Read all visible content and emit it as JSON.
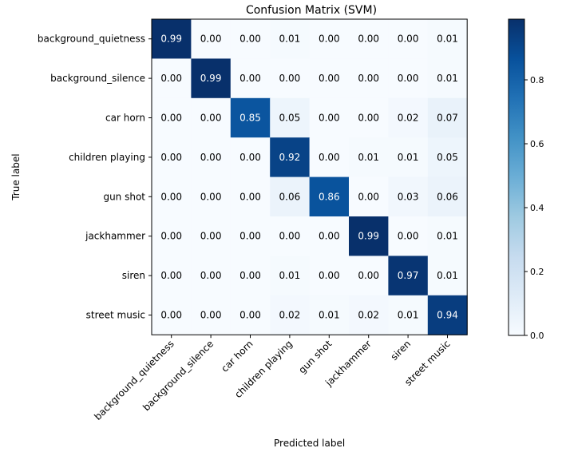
{
  "chart_data": {
    "type": "heatmap",
    "title": "Confusion Matrix  (SVM)",
    "xlabel": "Predicted label",
    "ylabel": "True label",
    "row_labels": [
      "background_quietness",
      "background_silence",
      "car horn",
      "children playing",
      "gun shot",
      "jackhammer",
      "siren",
      "street music"
    ],
    "col_labels": [
      "background_quietness",
      "background_silence",
      "car horn",
      "children playing",
      "gun shot",
      "jackhammer",
      "siren",
      "street music"
    ],
    "values": [
      [
        0.99,
        0.0,
        0.0,
        0.01,
        0.0,
        0.0,
        0.0,
        0.01
      ],
      [
        0.0,
        0.99,
        0.0,
        0.0,
        0.0,
        0.0,
        0.0,
        0.01
      ],
      [
        0.0,
        0.0,
        0.85,
        0.05,
        0.0,
        0.0,
        0.02,
        0.07
      ],
      [
        0.0,
        0.0,
        0.0,
        0.92,
        0.0,
        0.01,
        0.01,
        0.05
      ],
      [
        0.0,
        0.0,
        0.0,
        0.06,
        0.86,
        0.0,
        0.03,
        0.06
      ],
      [
        0.0,
        0.0,
        0.0,
        0.0,
        0.0,
        0.99,
        0.0,
        0.01
      ],
      [
        0.0,
        0.0,
        0.0,
        0.01,
        0.0,
        0.0,
        0.97,
        0.01
      ],
      [
        0.0,
        0.0,
        0.0,
        0.02,
        0.01,
        0.02,
        0.01,
        0.94
      ]
    ],
    "value_format": "0.00",
    "colormap": "Blues",
    "colorbar": {
      "range": [
        0,
        0.99
      ],
      "ticks": [
        0.0,
        0.2,
        0.4,
        0.6,
        0.8
      ],
      "tick_labels": [
        "0.0",
        "0.2",
        "0.4",
        "0.6",
        "0.8"
      ]
    },
    "colors": {
      "low": "#f7fbff",
      "high": "#08306b"
    }
  }
}
